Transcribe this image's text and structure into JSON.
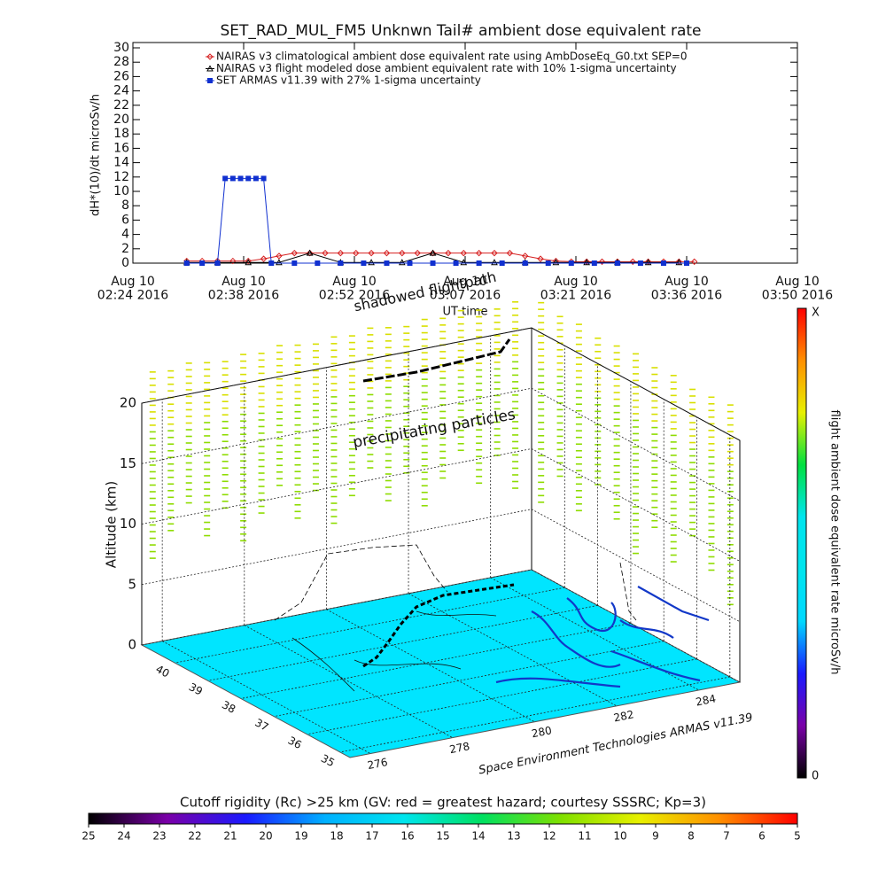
{
  "chart_data": [
    {
      "type": "line",
      "title": "SET_RAD_MUL_FM5 Unknwn Tail#  ambient dose equivalent rate",
      "ylabel": "dH*(10)/dt microSv/h",
      "xlabel": "UT time",
      "legend": "upper-left",
      "xlim": [
        "2016-08-10T02:24:00Z",
        "2016-08-10T03:50:24Z"
      ],
      "xticks": [
        {
          "value": "2016-08-10T02:24:00Z",
          "label": "Aug 10\n02:24 2016"
        },
        {
          "value": "2016-08-10T02:38:24Z",
          "label": "Aug 10\n02:38 2016"
        },
        {
          "value": "2016-08-10T02:52:48Z",
          "label": "Aug 10\n02:52 2016"
        },
        {
          "value": "2016-08-10T03:07:12Z",
          "label": "Aug 10\n03:07 2016"
        },
        {
          "value": "2016-08-10T03:21:36Z",
          "label": "Aug 10\n03:21 2016"
        },
        {
          "value": "2016-08-10T03:36:00Z",
          "label": "Aug 10\n03:36 2016"
        },
        {
          "value": "2016-08-10T03:50:24Z",
          "label": "Aug 10\n03:50 2016"
        }
      ],
      "ylim": [
        0,
        30
      ],
      "yticks": [
        0,
        2,
        4,
        6,
        8,
        10,
        12,
        14,
        16,
        18,
        20,
        22,
        24,
        26,
        28,
        30
      ],
      "series": [
        {
          "name": "NAIRAS v3 climatological ambient dose equivalent rate using AmbDoseEq_G0.txt SEP=0",
          "color": "#d62020",
          "marker": "diamond",
          "x": [
            "2016-08-10T02:31:00Z",
            "2016-08-10T02:33:00Z",
            "2016-08-10T02:35:00Z",
            "2016-08-10T02:37:00Z",
            "2016-08-10T02:39:00Z",
            "2016-08-10T02:41:00Z",
            "2016-08-10T02:43:00Z",
            "2016-08-10T02:45:00Z",
            "2016-08-10T02:47:00Z",
            "2016-08-10T02:49:00Z",
            "2016-08-10T02:51:00Z",
            "2016-08-10T02:53:00Z",
            "2016-08-10T02:55:00Z",
            "2016-08-10T02:57:00Z",
            "2016-08-10T02:59:00Z",
            "2016-08-10T03:01:00Z",
            "2016-08-10T03:03:00Z",
            "2016-08-10T03:05:00Z",
            "2016-08-10T03:07:00Z",
            "2016-08-10T03:09:00Z",
            "2016-08-10T03:11:00Z",
            "2016-08-10T03:13:00Z",
            "2016-08-10T03:15:00Z",
            "2016-08-10T03:17:00Z",
            "2016-08-10T03:19:00Z",
            "2016-08-10T03:21:00Z",
            "2016-08-10T03:23:00Z",
            "2016-08-10T03:25:00Z",
            "2016-08-10T03:27:00Z",
            "2016-08-10T03:29:00Z",
            "2016-08-10T03:31:00Z",
            "2016-08-10T03:33:00Z",
            "2016-08-10T03:35:00Z",
            "2016-08-10T03:37:00Z"
          ],
          "values": [
            0.3,
            0.3,
            0.3,
            0.3,
            0.3,
            0.6,
            1.0,
            1.4,
            1.4,
            1.4,
            1.4,
            1.4,
            1.4,
            1.4,
            1.4,
            1.4,
            1.4,
            1.4,
            1.4,
            1.4,
            1.4,
            1.4,
            1.0,
            0.6,
            0.3,
            0.2,
            0.2,
            0.2,
            0.2,
            0.2,
            0.2,
            0.2,
            0.2,
            0.2
          ]
        },
        {
          "name": "NAIRAS v3 flight modeled dose ambient equivalent rate with 10% 1-sigma uncertainty",
          "color": "#000000",
          "marker": "triangle",
          "x": [
            "2016-08-10T02:31:00Z",
            "2016-08-10T02:35:00Z",
            "2016-08-10T02:39:00Z",
            "2016-08-10T02:43:00Z",
            "2016-08-10T02:47:00Z",
            "2016-08-10T02:51:00Z",
            "2016-08-10T02:55:00Z",
            "2016-08-10T02:59:00Z",
            "2016-08-10T03:03:00Z",
            "2016-08-10T03:07:00Z",
            "2016-08-10T03:11:00Z",
            "2016-08-10T03:15:00Z",
            "2016-08-10T03:19:00Z",
            "2016-08-10T03:23:00Z",
            "2016-08-10T03:27:00Z",
            "2016-08-10T03:31:00Z",
            "2016-08-10T03:35:00Z"
          ],
          "values": [
            0.1,
            0.1,
            0.1,
            0.1,
            1.4,
            0.1,
            0.1,
            0.1,
            1.4,
            0.1,
            0.1,
            0.1,
            0.1,
            0.1,
            0.1,
            0.1,
            0.1
          ]
        },
        {
          "name": "SET ARMAS v11.39 with 27% 1-sigma uncertainty",
          "color": "#1030d0",
          "marker": "square",
          "x": [
            "2016-08-10T02:31:00Z",
            "2016-08-10T02:33:00Z",
            "2016-08-10T02:35:00Z",
            "2016-08-10T02:36:00Z",
            "2016-08-10T02:37:00Z",
            "2016-08-10T02:38:00Z",
            "2016-08-10T02:39:00Z",
            "2016-08-10T02:40:00Z",
            "2016-08-10T02:41:00Z",
            "2016-08-10T02:42:00Z",
            "2016-08-10T02:45:00Z",
            "2016-08-10T02:48:00Z",
            "2016-08-10T02:51:00Z",
            "2016-08-10T02:54:00Z",
            "2016-08-10T02:57:00Z",
            "2016-08-10T03:00:00Z",
            "2016-08-10T03:03:00Z",
            "2016-08-10T03:06:00Z",
            "2016-08-10T03:09:00Z",
            "2016-08-10T03:12:00Z",
            "2016-08-10T03:15:00Z",
            "2016-08-10T03:18:00Z",
            "2016-08-10T03:21:00Z",
            "2016-08-10T03:24:00Z",
            "2016-08-10T03:27:00Z",
            "2016-08-10T03:30:00Z",
            "2016-08-10T03:33:00Z",
            "2016-08-10T03:36:00Z"
          ],
          "values": [
            0,
            0,
            0,
            11.8,
            11.8,
            11.8,
            11.8,
            11.8,
            11.8,
            0,
            0,
            0,
            0,
            0,
            0,
            0,
            0,
            0,
            0,
            0,
            0,
            0,
            0,
            0,
            0,
            0,
            0,
            0
          ]
        }
      ]
    },
    {
      "type": "surface3d",
      "zlabel": "Altitude (km)",
      "zlim": [
        0,
        20
      ],
      "zticks": [
        0,
        5,
        10,
        15,
        20
      ],
      "xlim": [
        275.5,
        285
      ],
      "xticks": [
        276,
        278,
        280,
        282,
        284
      ],
      "ylim": [
        34.7,
        41
      ],
      "yticks": [
        35,
        36,
        37,
        38,
        39,
        40
      ],
      "floor_color": "#00e5ff",
      "annotations": [
        "shadowed flightpath",
        "precipitating particles",
        "Space Environment Technologies ARMAS v11.39"
      ]
    },
    {
      "type": "colorbar",
      "orientation": "vertical",
      "label": "flight ambient dose equivalent rate microSv/h",
      "ticks": [
        0,
        "X"
      ],
      "colors": [
        "#000000",
        "#7a00a8",
        "#1a1aff",
        "#00d8ff",
        "#00e5ee",
        "#00e5ee",
        "#00e040",
        "#e8f000",
        "#ff9000",
        "#ff0000"
      ]
    },
    {
      "type": "colorbar",
      "orientation": "horizontal",
      "label": "Cutoff rigidity (Rc) >25 km (GV: red = greatest hazard; courtesy SSSRC; Kp=3)",
      "xlim": [
        25,
        5
      ],
      "xticks": [
        25,
        24,
        23,
        22,
        21,
        20,
        19,
        18,
        17,
        16,
        15,
        14,
        13,
        12,
        11,
        10,
        9,
        8,
        7,
        6,
        5
      ],
      "colors": [
        "#000000",
        "#7a00a8",
        "#1a1aff",
        "#00b0ff",
        "#00e5ee",
        "#00e060",
        "#80e000",
        "#e8f000",
        "#ff9000",
        "#ff0000"
      ]
    }
  ]
}
